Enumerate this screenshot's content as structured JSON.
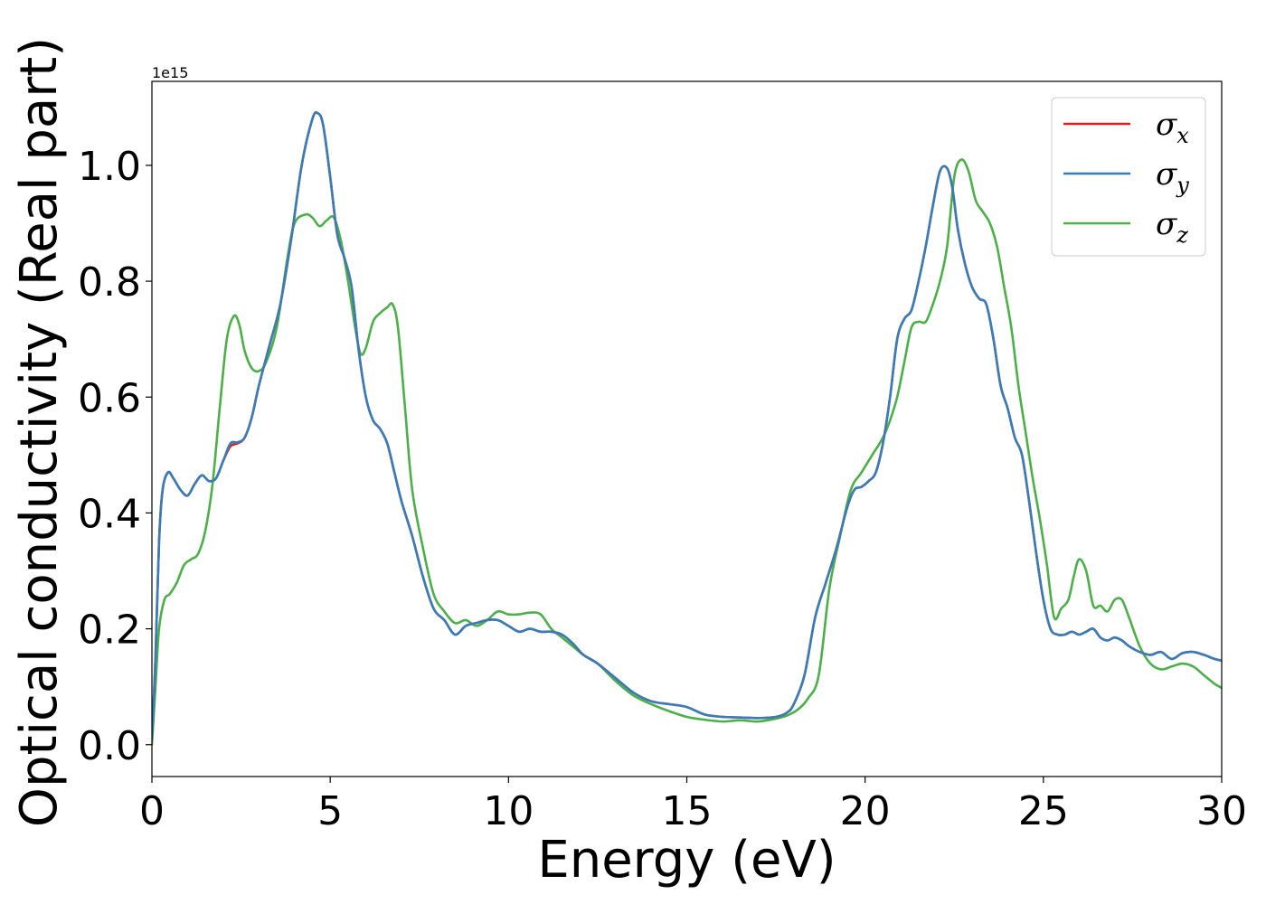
{
  "chart_data": {
    "type": "line",
    "xlabel": "Energy (eV)",
    "ylabel": "Optical conductivity (Real part)",
    "offset_text": "1e15",
    "scale": 1000000000000000.0,
    "xlim": [
      0,
      30
    ],
    "ylim": [
      -0.055,
      1.145
    ],
    "xticks": [
      0,
      5,
      10,
      15,
      20,
      25,
      30
    ],
    "yticks": [
      0.0,
      0.2,
      0.4,
      0.6,
      0.8,
      1.0
    ],
    "xtick_labels": [
      "0",
      "5",
      "10",
      "15",
      "20",
      "25",
      "30"
    ],
    "ytick_labels": [
      "0.0",
      "0.2",
      "0.4",
      "0.6",
      "0.8",
      "1.0"
    ],
    "grid": false,
    "legend_position": "top-right",
    "series": [
      {
        "name": "σ_x",
        "legend_base": "σ",
        "legend_sub": "x",
        "color": "#e41a1c",
        "x": [
          0,
          0.1,
          0.2,
          0.3,
          0.45,
          0.6,
          0.8,
          1.0,
          1.2,
          1.4,
          1.6,
          1.8,
          2.0,
          2.2,
          2.4,
          2.6,
          2.8,
          3.0,
          3.3,
          3.6,
          3.9,
          4.2,
          4.5,
          4.65,
          4.8,
          5.0,
          5.2,
          5.4,
          5.6,
          5.8,
          6.0,
          6.2,
          6.4,
          6.6,
          6.8,
          7.0,
          7.3,
          7.6,
          7.9,
          8.2,
          8.5,
          8.8,
          9.1,
          9.4,
          9.7,
          10.0,
          10.3,
          10.6,
          10.9,
          11.2,
          11.5,
          11.8,
          12.1,
          12.5,
          13.0,
          13.5,
          14.0,
          14.5,
          15.0,
          15.5,
          16.0,
          16.5,
          17.0,
          17.5,
          17.8,
          18.0,
          18.3,
          18.6,
          18.9,
          19.2,
          19.5,
          19.7,
          19.9,
          20.1,
          20.3,
          20.5,
          20.7,
          20.9,
          21.1,
          21.3,
          21.5,
          21.7,
          21.9,
          22.1,
          22.3,
          22.45,
          22.6,
          22.8,
          23.0,
          23.2,
          23.4,
          23.6,
          23.8,
          24.0,
          24.2,
          24.4,
          24.6,
          24.8,
          25.0,
          25.2,
          25.4,
          25.6,
          25.8,
          26.0,
          26.2,
          26.4,
          26.6,
          26.8,
          27.0,
          27.2,
          27.4,
          27.7,
          28.0,
          28.3,
          28.6,
          28.9,
          29.2,
          29.5,
          29.8,
          30.0
        ],
        "y": [
          0.01,
          0.15,
          0.35,
          0.44,
          0.47,
          0.46,
          0.44,
          0.43,
          0.45,
          0.465,
          0.455,
          0.46,
          0.49,
          0.515,
          0.52,
          0.53,
          0.565,
          0.62,
          0.69,
          0.76,
          0.87,
          1.0,
          1.08,
          1.09,
          1.07,
          0.98,
          0.88,
          0.84,
          0.79,
          0.68,
          0.6,
          0.56,
          0.545,
          0.52,
          0.47,
          0.42,
          0.36,
          0.29,
          0.235,
          0.215,
          0.19,
          0.205,
          0.21,
          0.215,
          0.215,
          0.205,
          0.195,
          0.2,
          0.195,
          0.195,
          0.19,
          0.175,
          0.155,
          0.14,
          0.115,
          0.09,
          0.075,
          0.07,
          0.065,
          0.052,
          0.048,
          0.047,
          0.046,
          0.048,
          0.055,
          0.07,
          0.12,
          0.22,
          0.28,
          0.34,
          0.41,
          0.44,
          0.445,
          0.455,
          0.47,
          0.52,
          0.6,
          0.7,
          0.735,
          0.75,
          0.8,
          0.86,
          0.93,
          0.99,
          0.995,
          0.96,
          0.89,
          0.83,
          0.79,
          0.77,
          0.76,
          0.7,
          0.62,
          0.58,
          0.53,
          0.5,
          0.42,
          0.33,
          0.25,
          0.2,
          0.19,
          0.19,
          0.195,
          0.19,
          0.195,
          0.2,
          0.185,
          0.18,
          0.185,
          0.18,
          0.17,
          0.16,
          0.155,
          0.16,
          0.148,
          0.158,
          0.16,
          0.155,
          0.148,
          0.145
        ]
      },
      {
        "name": "σ_y",
        "legend_base": "σ",
        "legend_sub": "y",
        "color": "#377eb8",
        "x": [
          0,
          0.1,
          0.2,
          0.3,
          0.45,
          0.6,
          0.8,
          1.0,
          1.2,
          1.4,
          1.6,
          1.8,
          2.0,
          2.2,
          2.4,
          2.6,
          2.8,
          3.0,
          3.3,
          3.6,
          3.9,
          4.2,
          4.5,
          4.65,
          4.8,
          5.0,
          5.2,
          5.4,
          5.6,
          5.8,
          6.0,
          6.2,
          6.4,
          6.6,
          6.8,
          7.0,
          7.3,
          7.6,
          7.9,
          8.2,
          8.5,
          8.8,
          9.1,
          9.4,
          9.7,
          10.0,
          10.3,
          10.6,
          10.9,
          11.2,
          11.5,
          11.8,
          12.1,
          12.5,
          13.0,
          13.5,
          14.0,
          14.5,
          15.0,
          15.5,
          16.0,
          16.5,
          17.0,
          17.5,
          17.8,
          18.0,
          18.3,
          18.6,
          18.9,
          19.2,
          19.5,
          19.7,
          19.9,
          20.1,
          20.3,
          20.5,
          20.7,
          20.9,
          21.1,
          21.3,
          21.5,
          21.7,
          21.9,
          22.1,
          22.3,
          22.45,
          22.6,
          22.8,
          23.0,
          23.2,
          23.4,
          23.6,
          23.8,
          24.0,
          24.2,
          24.4,
          24.6,
          24.8,
          25.0,
          25.2,
          25.4,
          25.6,
          25.8,
          26.0,
          26.2,
          26.4,
          26.6,
          26.8,
          27.0,
          27.2,
          27.4,
          27.7,
          28.0,
          28.3,
          28.6,
          28.9,
          29.2,
          29.5,
          29.8,
          30.0
        ],
        "y": [
          0.01,
          0.15,
          0.35,
          0.44,
          0.47,
          0.46,
          0.44,
          0.43,
          0.45,
          0.465,
          0.455,
          0.46,
          0.49,
          0.52,
          0.522,
          0.53,
          0.565,
          0.62,
          0.69,
          0.76,
          0.87,
          1.0,
          1.08,
          1.09,
          1.07,
          0.98,
          0.88,
          0.84,
          0.79,
          0.68,
          0.6,
          0.56,
          0.545,
          0.52,
          0.47,
          0.42,
          0.36,
          0.29,
          0.235,
          0.215,
          0.19,
          0.205,
          0.21,
          0.215,
          0.215,
          0.205,
          0.195,
          0.2,
          0.195,
          0.195,
          0.19,
          0.175,
          0.155,
          0.14,
          0.115,
          0.09,
          0.075,
          0.07,
          0.065,
          0.052,
          0.048,
          0.047,
          0.046,
          0.048,
          0.055,
          0.07,
          0.12,
          0.22,
          0.28,
          0.34,
          0.41,
          0.44,
          0.445,
          0.455,
          0.47,
          0.52,
          0.6,
          0.7,
          0.735,
          0.75,
          0.8,
          0.86,
          0.93,
          0.99,
          0.995,
          0.96,
          0.89,
          0.83,
          0.79,
          0.77,
          0.76,
          0.7,
          0.62,
          0.58,
          0.53,
          0.5,
          0.42,
          0.33,
          0.25,
          0.2,
          0.19,
          0.19,
          0.195,
          0.19,
          0.195,
          0.2,
          0.185,
          0.18,
          0.185,
          0.18,
          0.17,
          0.16,
          0.155,
          0.16,
          0.148,
          0.158,
          0.16,
          0.155,
          0.148,
          0.145
        ]
      },
      {
        "name": "σ_z",
        "legend_base": "σ",
        "legend_sub": "z",
        "color": "#4daf4a",
        "x": [
          0,
          0.1,
          0.2,
          0.35,
          0.5,
          0.7,
          0.9,
          1.1,
          1.3,
          1.5,
          1.7,
          1.9,
          2.1,
          2.3,
          2.45,
          2.6,
          2.8,
          3.0,
          3.2,
          3.5,
          3.8,
          4.0,
          4.3,
          4.5,
          4.7,
          4.9,
          5.1,
          5.3,
          5.5,
          5.7,
          5.85,
          6.0,
          6.2,
          6.4,
          6.6,
          6.75,
          6.9,
          7.1,
          7.3,
          7.6,
          7.9,
          8.2,
          8.5,
          8.8,
          9.1,
          9.4,
          9.7,
          10.0,
          10.3,
          10.6,
          10.9,
          11.2,
          11.5,
          11.8,
          12.1,
          12.5,
          13.0,
          13.5,
          14.0,
          14.5,
          15.0,
          15.5,
          16.0,
          16.5,
          17.0,
          17.5,
          17.8,
          18.1,
          18.4,
          18.7,
          19.0,
          19.3,
          19.6,
          19.9,
          20.2,
          20.5,
          20.7,
          20.9,
          21.1,
          21.3,
          21.5,
          21.7,
          21.9,
          22.1,
          22.3,
          22.5,
          22.7,
          22.9,
          23.1,
          23.3,
          23.5,
          23.7,
          23.9,
          24.1,
          24.3,
          24.5,
          24.7,
          24.9,
          25.1,
          25.3,
          25.5,
          25.7,
          25.85,
          26.0,
          26.2,
          26.4,
          26.6,
          26.8,
          27.0,
          27.2,
          27.4,
          27.7,
          28.0,
          28.3,
          28.6,
          28.9,
          29.2,
          29.5,
          29.8,
          30.0
        ],
        "y": [
          0.0,
          0.1,
          0.2,
          0.25,
          0.26,
          0.28,
          0.31,
          0.32,
          0.33,
          0.37,
          0.45,
          0.58,
          0.7,
          0.74,
          0.725,
          0.68,
          0.65,
          0.645,
          0.66,
          0.72,
          0.84,
          0.9,
          0.915,
          0.91,
          0.895,
          0.905,
          0.91,
          0.87,
          0.8,
          0.72,
          0.675,
          0.685,
          0.73,
          0.745,
          0.755,
          0.76,
          0.72,
          0.58,
          0.44,
          0.34,
          0.26,
          0.23,
          0.21,
          0.215,
          0.205,
          0.215,
          0.23,
          0.225,
          0.225,
          0.228,
          0.225,
          0.2,
          0.185,
          0.17,
          0.155,
          0.14,
          0.11,
          0.085,
          0.07,
          0.058,
          0.048,
          0.043,
          0.04,
          0.042,
          0.04,
          0.045,
          0.05,
          0.06,
          0.08,
          0.12,
          0.27,
          0.36,
          0.44,
          0.47,
          0.5,
          0.53,
          0.56,
          0.6,
          0.66,
          0.72,
          0.73,
          0.73,
          0.76,
          0.8,
          0.86,
          0.98,
          1.01,
          0.99,
          0.94,
          0.92,
          0.9,
          0.86,
          0.79,
          0.72,
          0.62,
          0.54,
          0.46,
          0.39,
          0.31,
          0.22,
          0.235,
          0.25,
          0.29,
          0.32,
          0.3,
          0.24,
          0.24,
          0.23,
          0.25,
          0.25,
          0.22,
          0.17,
          0.14,
          0.13,
          0.135,
          0.14,
          0.135,
          0.12,
          0.105,
          0.098
        ]
      }
    ]
  }
}
